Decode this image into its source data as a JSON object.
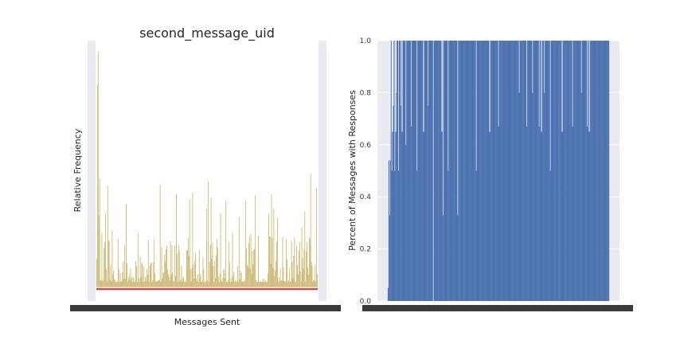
{
  "chart_data": [
    {
      "type": "bar",
      "title": "second_message_uid",
      "xlabel": "Messages Sent",
      "ylabel": "Relative Frequency",
      "grid": true,
      "colors": {
        "bars": "#ccb974",
        "baseline": "#c44e52",
        "background": "#eaeaf2"
      },
      "x_count": 300,
      "y_ticks_visible": false,
      "x_tick_labels_legible": false,
      "values_peak_relative": [
        1.0,
        0.86,
        0.46,
        0.43,
        0.4,
        0.38,
        0.39,
        0.48,
        0.42
      ]
    },
    {
      "type": "bar",
      "title": "",
      "xlabel": "",
      "ylabel": "Percent of Messages with Responses",
      "ylim": [
        0,
        1.0
      ],
      "y_ticks": [
        "0.0",
        "0.2",
        "0.4",
        "0.6",
        "0.8",
        "1.0"
      ],
      "grid": true,
      "colors": {
        "bars": "#4c72b0",
        "background": "#eaeaf2"
      },
      "x_count": 300,
      "x_tick_labels_legible": false,
      "values_notes": "most bars at 1.0; some at 0.0, 0.05, 0.33, 0.5, 0.54, 0.67, 0.75, 0.8"
    }
  ]
}
